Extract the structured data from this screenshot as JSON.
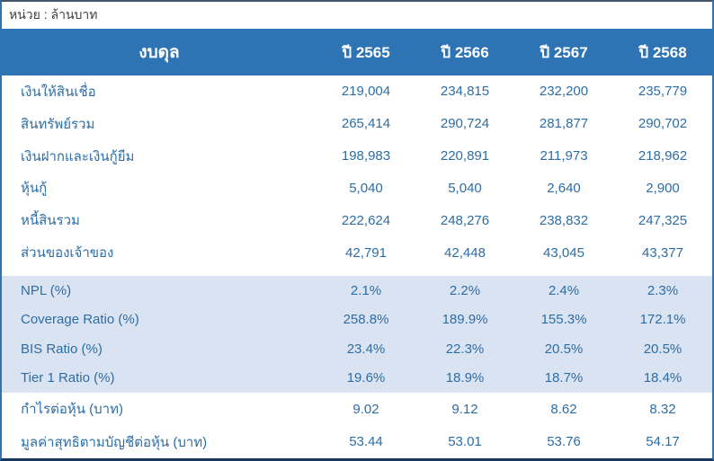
{
  "unit_label": "หน่วย : ล้านบาท",
  "table": {
    "title": "งบดุล",
    "year_columns": [
      "ปี 2565",
      "ปี 2566",
      "ปี 2567",
      "ปี 2568"
    ],
    "sections": [
      {
        "name": "balance-sheet",
        "rows": [
          {
            "label": "เงินให้สินเชื่อ",
            "values": [
              "219,004",
              "234,815",
              "232,200",
              "235,779"
            ]
          },
          {
            "label": "สินทรัพย์รวม",
            "values": [
              "265,414",
              "290,724",
              "281,877",
              "290,702"
            ]
          },
          {
            "label": "เงินฝากและเงินกู้ยืม",
            "values": [
              "198,983",
              "220,891",
              "211,973",
              "218,962"
            ]
          },
          {
            "label": "หุ้นกู้",
            "values": [
              "5,040",
              "5,040",
              "2,640",
              "2,900"
            ]
          },
          {
            "label": "หนี้สินรวม",
            "values": [
              "222,624",
              "248,276",
              "238,832",
              "247,325"
            ]
          },
          {
            "label": "ส่วนของเจ้าของ",
            "values": [
              "42,791",
              "42,448",
              "43,045",
              "43,377"
            ]
          }
        ]
      },
      {
        "name": "ratios",
        "rows": [
          {
            "label": "NPL (%)",
            "values": [
              "2.1%",
              "2.2%",
              "2.4%",
              "2.3%"
            ]
          },
          {
            "label": "Coverage Ratio (%)",
            "values": [
              "258.8%",
              "189.9%",
              "155.3%",
              "172.1%"
            ]
          },
          {
            "label": "BIS Ratio (%)",
            "values": [
              "23.4%",
              "22.3%",
              "20.5%",
              "20.5%"
            ]
          },
          {
            "label": "Tier 1 Ratio (%)",
            "values": [
              "19.6%",
              "18.9%",
              "18.7%",
              "18.4%"
            ]
          }
        ]
      },
      {
        "name": "per-share",
        "rows": [
          {
            "label": "กำไรต่อหุ้น (บาท)",
            "values": [
              "9.02",
              "9.12",
              "8.62",
              "8.32"
            ]
          },
          {
            "label": "มูลค่าสุทธิตามบัญชีต่อหุ้น (บาท)",
            "values": [
              "53.44",
              "53.01",
              "53.76",
              "54.17"
            ]
          }
        ]
      }
    ]
  },
  "colors": {
    "header-bg": "#2e74b5",
    "shade-bg": "#dae3f1",
    "text-blue": "#2e6da4",
    "unit-text": "#3f3f3f",
    "border-blue": "#2e74b5",
    "border-dark": "#17375e"
  }
}
